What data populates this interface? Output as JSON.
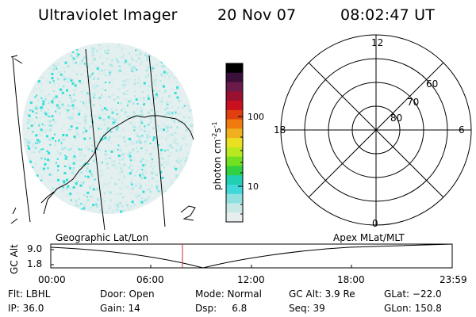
{
  "header": {
    "title": "Ultraviolet Imager",
    "date": "20 Nov 07",
    "time": "08:02:47 UT"
  },
  "colorbar": {
    "label": "photon cm",
    "label_sup1": "-2",
    "label_mid": "s",
    "label_sup2": "-1",
    "ticks": [
      "100",
      "10"
    ],
    "colors": [
      "#000000",
      "#3a0f3a",
      "#6a1b4a",
      "#9a1030",
      "#c81020",
      "#e04010",
      "#f07a10",
      "#f0b020",
      "#e8e020",
      "#b8e820",
      "#70e020",
      "#30d040",
      "#20d0b0",
      "#40d8d8",
      "#90e0e0",
      "#c8e8e8",
      "#e8eeee"
    ]
  },
  "polar": {
    "labels": {
      "top": "12",
      "left": "18",
      "right": "6",
      "bottom": "0"
    },
    "lat_labels": [
      "60",
      "70",
      "80"
    ]
  },
  "timeline": {
    "left_label": "Geographic Lat/Lon",
    "right_label": "Apex MLat/MLT",
    "y_title": "GC Alt",
    "y_ticks": [
      "9.0",
      "1.8"
    ],
    "x_ticks": [
      "00:00",
      "06:00",
      "12:00",
      "18:00",
      "23:59"
    ]
  },
  "info": {
    "row1": {
      "flt": "Flt: LBHL",
      "door": "Door: Open",
      "mode": "Mode: Normal",
      "gcalt": "GC Alt: 3.9 Re",
      "glat": "GLat: −22.0"
    },
    "row2": {
      "ip": "IP: 36.0",
      "gain": "Gain: 14",
      "dsp": "Dsp:     6.8",
      "seq": "Seq: 39",
      "glon": "GLon: 150.8"
    }
  },
  "colors": {
    "cyan_bright": "#30e0d8",
    "cyan_light": "#b0e8e8",
    "marker_red": "#c03030"
  }
}
